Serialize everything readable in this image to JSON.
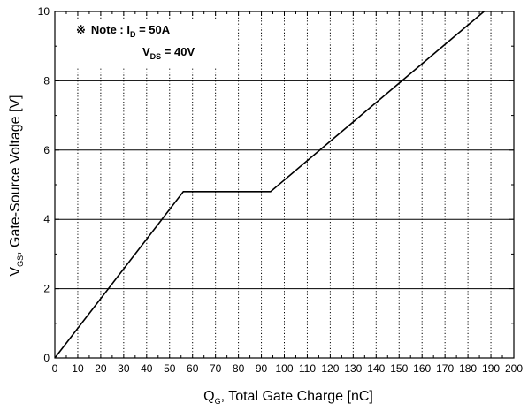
{
  "chart_data": {
    "type": "line",
    "xlabel_main": "Q",
    "xlabel_sub": "G",
    "xlabel_rest": ", Total Gate Charge [nC]",
    "ylabel_main": "V",
    "ylabel_sub": "GS",
    "ylabel_rest": ", Gate-Source Voltage [V]",
    "xlim": [
      0,
      200
    ],
    "ylim": [
      0,
      10
    ],
    "x_ticks": [
      0,
      10,
      20,
      30,
      40,
      50,
      60,
      70,
      80,
      90,
      100,
      110,
      120,
      130,
      140,
      150,
      160,
      170,
      180,
      190,
      200
    ],
    "y_ticks": [
      0,
      2,
      4,
      6,
      8,
      10
    ],
    "grid": {
      "vertical": "dotted",
      "horizontal": "solid"
    },
    "series": [
      {
        "x": [
          0,
          56,
          94,
          187
        ],
        "y": [
          0,
          4.8,
          4.8,
          10
        ]
      }
    ],
    "annotation": {
      "symbol": "※",
      "line1_prefix": "Note : I",
      "line1_sub": "D",
      "line1_suffix": " = 50A",
      "line2_prefix": "V",
      "line2_sub": "DS",
      "line2_suffix": " = 40V"
    }
  }
}
